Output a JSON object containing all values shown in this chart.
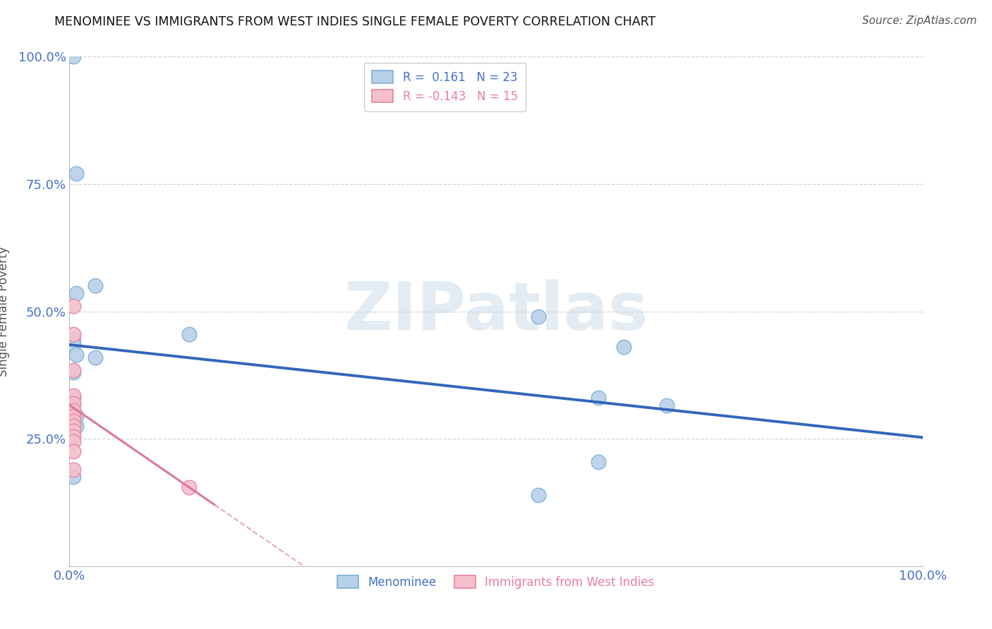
{
  "title": "MENOMINEE VS IMMIGRANTS FROM WEST INDIES SINGLE FEMALE POVERTY CORRELATION CHART",
  "source": "Source: ZipAtlas.com",
  "ylabel": "Single Female Poverty",
  "xlim": [
    0.0,
    1.0
  ],
  "ylim": [
    0.0,
    1.0
  ],
  "menominee_x": [
    0.008,
    0.03,
    0.008,
    0.005,
    0.005,
    0.008,
    0.005,
    0.005,
    0.008,
    0.008,
    0.005,
    0.005,
    0.03,
    0.55,
    0.65,
    0.7,
    0.62,
    0.55,
    0.005,
    0.14,
    0.005,
    0.62,
    0.005
  ],
  "menominee_y": [
    0.77,
    0.55,
    0.535,
    0.445,
    0.435,
    0.415,
    0.33,
    0.305,
    0.295,
    0.275,
    0.265,
    0.175,
    0.41,
    0.49,
    0.43,
    0.315,
    0.205,
    0.14,
    0.38,
    0.455,
    0.32,
    0.33,
    1.0
  ],
  "westindies_x": [
    0.005,
    0.005,
    0.005,
    0.005,
    0.005,
    0.005,
    0.005,
    0.005,
    0.005,
    0.005,
    0.005,
    0.005,
    0.005,
    0.14,
    0.005
  ],
  "westindies_y": [
    0.455,
    0.385,
    0.335,
    0.32,
    0.305,
    0.295,
    0.285,
    0.275,
    0.265,
    0.255,
    0.245,
    0.225,
    0.19,
    0.155,
    0.51
  ],
  "menominee_color": "#b8d0e8",
  "menominee_edge": "#7aafd4",
  "westindies_color": "#f5bfcc",
  "westindies_edge": "#e8829e",
  "trendline_menominee_color": "#3366bb",
  "trendline_westindies_color": "#dd7799",
  "trendline_westindies_solid_end": 0.17,
  "R_menominee": "0.161",
  "N_menominee": "23",
  "R_westindies": "-0.143",
  "N_westindies": "15",
  "watermark_text": "ZIPatlas",
  "watermark_color": "#c8d8e8",
  "grid_color": "#d0d0d0",
  "background_color": "#ffffff",
  "legend_label_menominee": "Menominee",
  "legend_label_westindies": "Immigrants from West Indies",
  "title_fontsize": 12.5,
  "source_fontsize": 11,
  "tick_fontsize": 13,
  "ylabel_fontsize": 12,
  "legend_fontsize": 12
}
